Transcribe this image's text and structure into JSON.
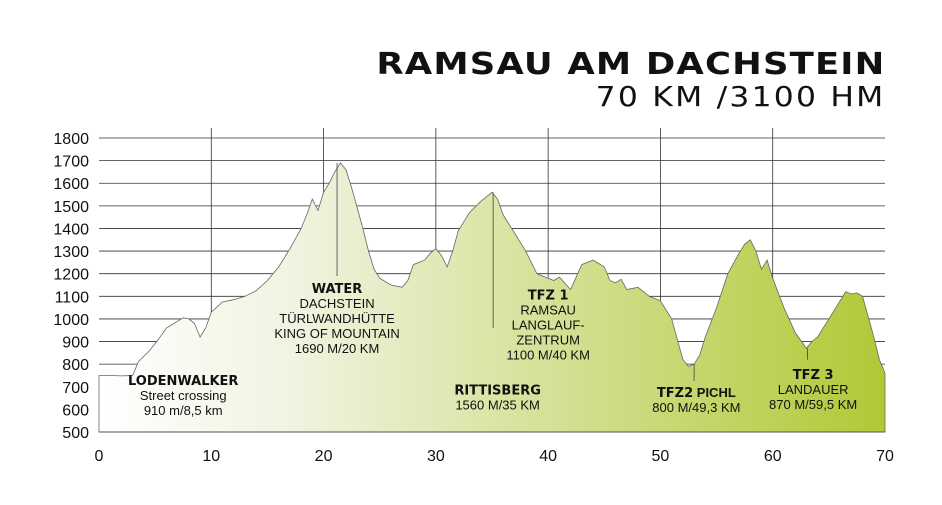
{
  "chart_data": {
    "type": "area",
    "title": "RAMSAU AM DACHSTEIN",
    "subtitle": "70 KM /3100 HM",
    "xlabel": "",
    "ylabel": "",
    "xlim": [
      0,
      70
    ],
    "ylim": [
      500,
      1850
    ],
    "x_ticks": [
      0,
      10,
      20,
      30,
      40,
      50,
      60,
      70
    ],
    "y_ticks": [
      500,
      600,
      700,
      800,
      900,
      1000,
      1100,
      1200,
      1300,
      1400,
      1500,
      1600,
      1700,
      1800
    ],
    "grid": true,
    "colors": {
      "fill_start": "#ffffff",
      "fill_end": "#b0c936",
      "line": "#666666",
      "grid": "#333333"
    },
    "profile": [
      [
        0,
        750
      ],
      [
        1,
        750
      ],
      [
        2,
        748
      ],
      [
        3,
        750
      ],
      [
        3.5,
        810
      ],
      [
        4.5,
        860
      ],
      [
        5.3,
        910
      ],
      [
        6,
        960
      ],
      [
        6.5,
        975
      ],
      [
        7,
        990
      ],
      [
        7.5,
        1005
      ],
      [
        8,
        1000
      ],
      [
        8.5,
        980
      ],
      [
        9,
        920
      ],
      [
        9.5,
        960
      ],
      [
        10,
        1030
      ],
      [
        11,
        1075
      ],
      [
        12,
        1085
      ],
      [
        13,
        1100
      ],
      [
        14,
        1125
      ],
      [
        15,
        1170
      ],
      [
        16,
        1230
      ],
      [
        17,
        1310
      ],
      [
        18,
        1400
      ],
      [
        18.5,
        1460
      ],
      [
        19,
        1530
      ],
      [
        19.5,
        1480
      ],
      [
        20,
        1560
      ],
      [
        20.5,
        1600
      ],
      [
        21,
        1650
      ],
      [
        21.5,
        1690
      ],
      [
        22,
        1660
      ],
      [
        22.5,
        1580
      ],
      [
        23,
        1490
      ],
      [
        23.5,
        1400
      ],
      [
        24,
        1300
      ],
      [
        24.5,
        1220
      ],
      [
        25,
        1180
      ],
      [
        26,
        1150
      ],
      [
        27,
        1140
      ],
      [
        27.5,
        1170
      ],
      [
        28,
        1240
      ],
      [
        28.5,
        1250
      ],
      [
        29,
        1260
      ],
      [
        29.5,
        1290
      ],
      [
        30,
        1310
      ],
      [
        30.5,
        1280
      ],
      [
        31,
        1230
      ],
      [
        31.5,
        1300
      ],
      [
        32,
        1390
      ],
      [
        33,
        1470
      ],
      [
        34,
        1520
      ],
      [
        35,
        1560
      ],
      [
        35.5,
        1530
      ],
      [
        36,
        1460
      ],
      [
        37,
        1380
      ],
      [
        38,
        1300
      ],
      [
        39,
        1200
      ],
      [
        40,
        1180
      ],
      [
        40.5,
        1170
      ],
      [
        41,
        1185
      ],
      [
        42,
        1130
      ],
      [
        43,
        1240
      ],
      [
        44,
        1260
      ],
      [
        45,
        1230
      ],
      [
        45.5,
        1170
      ],
      [
        46,
        1160
      ],
      [
        46.5,
        1175
      ],
      [
        47,
        1130
      ],
      [
        48,
        1140
      ],
      [
        49,
        1100
      ],
      [
        50,
        1080
      ],
      [
        51,
        1000
      ],
      [
        51.5,
        910
      ],
      [
        52,
        820
      ],
      [
        52.5,
        790
      ],
      [
        53,
        800
      ],
      [
        53.5,
        840
      ],
      [
        54,
        920
      ],
      [
        55,
        1050
      ],
      [
        56,
        1200
      ],
      [
        57,
        1290
      ],
      [
        57.5,
        1330
      ],
      [
        58,
        1350
      ],
      [
        58.5,
        1300
      ],
      [
        59,
        1220
      ],
      [
        59.5,
        1260
      ],
      [
        60,
        1180
      ],
      [
        61,
        1050
      ],
      [
        62,
        940
      ],
      [
        63,
        870
      ],
      [
        63.5,
        900
      ],
      [
        64,
        920
      ],
      [
        65,
        1000
      ],
      [
        66,
        1080
      ],
      [
        66.5,
        1120
      ],
      [
        67,
        1110
      ],
      [
        67.5,
        1115
      ],
      [
        68,
        1100
      ],
      [
        69,
        920
      ],
      [
        69.5,
        820
      ],
      [
        70,
        760
      ]
    ],
    "markers": [
      {
        "x": 21.2,
        "y_top": 1690,
        "y_bottom": 1190
      },
      {
        "x": 35.1,
        "y_top": 1560,
        "y_bottom": 960
      },
      {
        "x": 53.0,
        "y_top": 800,
        "y_bottom": 725
      },
      {
        "x": 63.1,
        "y_top": 870,
        "y_bottom": 820
      }
    ],
    "annotations": [
      {
        "x": 7.5,
        "y": 708,
        "head": "LODENWALKER",
        "lines": [
          "Street crossing",
          "910 m/8,5 km"
        ]
      },
      {
        "x": 21.2,
        "y": 1115,
        "head": "WATER",
        "lines": [
          "DACHSTEIN",
          "TÜRLWANDHÜTTE",
          "KING OF MOUNTAIN",
          "1690 M/20 KM"
        ]
      },
      {
        "x": 40,
        "y": 1085,
        "head": "TFZ 1",
        "lines": [
          "RAMSAU",
          "LANGLAUF-",
          "ZENTRUM",
          "1100 M/40 KM"
        ]
      },
      {
        "x": 35.5,
        "y": 665,
        "head": "RITTISBERG",
        "lines": [
          "1560 M/35 KM"
        ]
      },
      {
        "x": 53.2,
        "y": 655,
        "head": "TFZ2",
        "head_suffix": " PICHL",
        "lines": [
          "800 M/49,3 KM"
        ]
      },
      {
        "x": 63.6,
        "y": 735,
        "head": "TFZ 3",
        "lines": [
          "LANDAUER",
          "870 M/59,5 KM"
        ]
      }
    ]
  }
}
